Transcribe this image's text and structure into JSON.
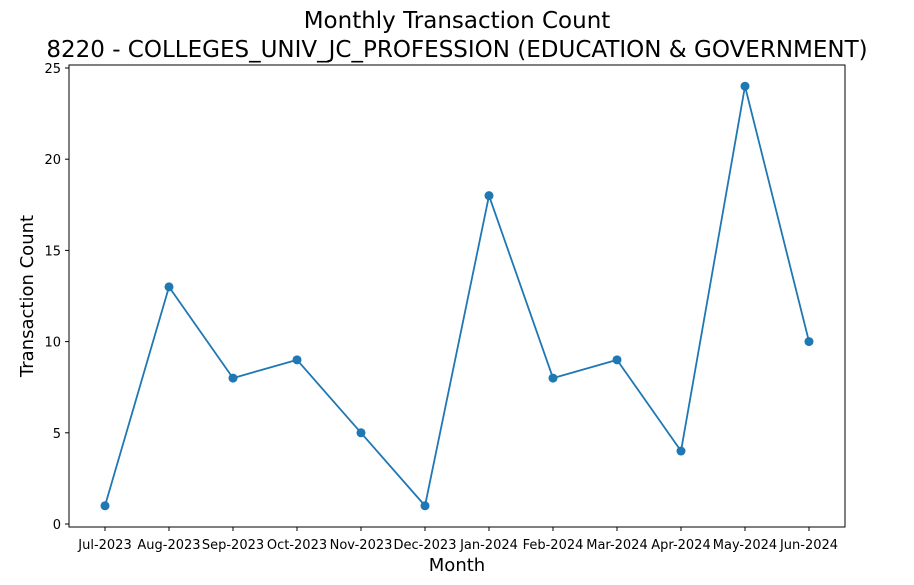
{
  "chart_data": {
    "type": "line",
    "title": "Monthly Transaction Count",
    "subtitle": "8220 - COLLEGES_UNIV_JC_PROFESSION (EDUCATION & GOVERNMENT)",
    "xlabel": "Month",
    "ylabel": "Transaction Count",
    "categories": [
      "Jul-2023",
      "Aug-2023",
      "Sep-2023",
      "Oct-2023",
      "Nov-2023",
      "Dec-2023",
      "Jan-2024",
      "Feb-2024",
      "Mar-2024",
      "Apr-2024",
      "May-2024",
      "Jun-2024"
    ],
    "series": [
      {
        "values": [
          1,
          13,
          8,
          9,
          5,
          1,
          18,
          8,
          9,
          4,
          24,
          10
        ],
        "color": "#1f77b4",
        "marker": "circle"
      }
    ],
    "yticks": [
      0,
      5,
      10,
      15,
      20,
      25
    ],
    "ylim": [
      0,
      25
    ],
    "grid": false,
    "legend": "none"
  }
}
